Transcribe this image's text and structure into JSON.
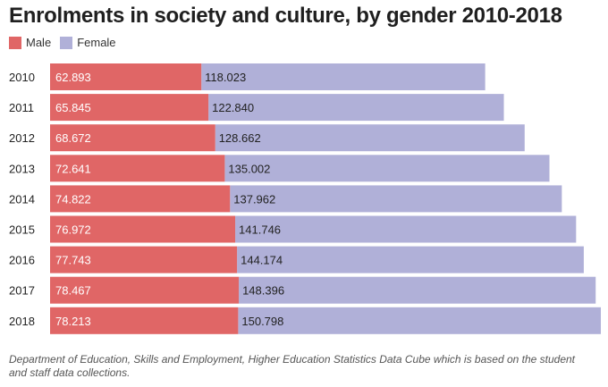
{
  "chart_data": {
    "type": "bar",
    "orientation": "horizontal",
    "stacked": true,
    "title": "Enrolments in society and culture, by gender 2010-2018",
    "categories": [
      "2010",
      "2011",
      "2012",
      "2013",
      "2014",
      "2015",
      "2016",
      "2017",
      "2018"
    ],
    "series": [
      {
        "name": "Male",
        "color": "#e06666",
        "values": [
          62893,
          65845,
          68672,
          72641,
          74822,
          76972,
          77743,
          78467,
          78213
        ],
        "labels": [
          "62.893",
          "65.845",
          "68.672",
          "72.641",
          "74.822",
          "76.972",
          "77.743",
          "78.467",
          "78.213"
        ]
      },
      {
        "name": "Female",
        "color": "#b0b0d8",
        "values": [
          118023,
          122840,
          128662,
          135002,
          137962,
          141746,
          144174,
          148396,
          150798
        ],
        "labels": [
          "118.023",
          "122.840",
          "128.662",
          "135.002",
          "137.962",
          "141.746",
          "144.174",
          "148.396",
          "150.798"
        ]
      }
    ],
    "xlim": [
      0,
      229011
    ],
    "grid": false,
    "legend_position": "top-left"
  },
  "source": "Department of Education, Skills and Employment, Higher Education Statistics Data Cube which is based on the student and staff data collections."
}
